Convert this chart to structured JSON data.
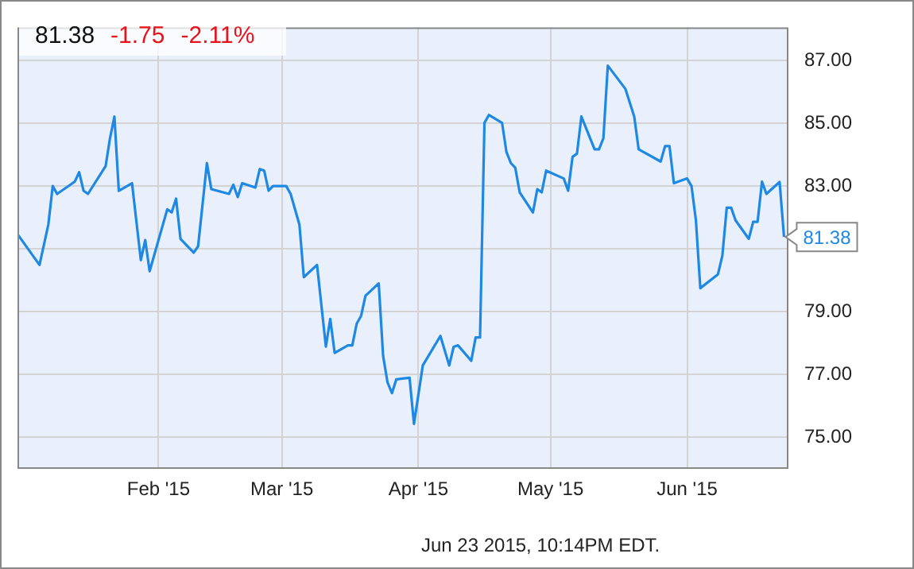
{
  "chart_data": {
    "type": "line",
    "x": [
      "2014-12-31",
      "2015-01-05",
      "2015-01-07",
      "2015-01-08",
      "2015-01-09",
      "2015-01-12",
      "2015-01-13",
      "2015-01-14",
      "2015-01-15",
      "2015-01-16",
      "2015-01-20",
      "2015-01-21",
      "2015-01-22",
      "2015-01-23",
      "2015-01-26",
      "2015-01-28",
      "2015-01-29",
      "2015-01-30",
      "2015-02-03",
      "2015-02-04",
      "2015-02-05",
      "2015-02-06",
      "2015-02-09",
      "2015-02-10",
      "2015-02-12",
      "2015-02-13",
      "2015-02-17",
      "2015-02-18",
      "2015-02-19",
      "2015-02-20",
      "2015-02-23",
      "2015-02-24",
      "2015-02-25",
      "2015-02-26",
      "2015-02-27",
      "2015-03-02",
      "2015-03-03",
      "2015-03-05",
      "2015-03-06",
      "2015-03-09",
      "2015-03-11",
      "2015-03-12",
      "2015-03-13",
      "2015-03-16",
      "2015-03-17",
      "2015-03-18",
      "2015-03-19",
      "2015-03-20",
      "2015-03-23",
      "2015-03-24",
      "2015-03-25",
      "2015-03-26",
      "2015-03-27",
      "2015-03-30",
      "2015-03-31",
      "2015-04-02",
      "2015-04-06",
      "2015-04-08",
      "2015-04-09",
      "2015-04-10",
      "2015-04-13",
      "2015-04-14",
      "2015-04-15",
      "2015-04-16",
      "2015-04-17",
      "2015-04-20",
      "2015-04-21",
      "2015-04-22",
      "2015-04-23",
      "2015-04-24",
      "2015-04-27",
      "2015-04-28",
      "2015-04-29",
      "2015-04-30",
      "2015-05-04",
      "2015-05-05",
      "2015-05-06",
      "2015-05-07",
      "2015-05-08",
      "2015-05-11",
      "2015-05-12",
      "2015-05-13",
      "2015-05-14",
      "2015-05-18",
      "2015-05-19",
      "2015-05-20",
      "2015-05-21",
      "2015-05-26",
      "2015-05-27",
      "2015-05-28",
      "2015-05-29",
      "2015-06-01",
      "2015-06-02",
      "2015-06-03",
      "2015-06-04",
      "2015-06-08",
      "2015-06-09",
      "2015-06-10",
      "2015-06-11",
      "2015-06-12",
      "2015-06-15",
      "2015-06-16",
      "2015-06-17",
      "2015-06-18",
      "2015-06-19",
      "2015-06-22",
      "2015-06-23"
    ],
    "series": [
      {
        "color": "#1e88e5",
        "values": [
          81.47,
          80.49,
          81.77,
          83.0,
          82.75,
          83.04,
          83.14,
          83.44,
          82.85,
          82.75,
          83.63,
          84.52,
          85.21,
          82.85,
          83.09,
          80.64,
          81.28,
          80.29,
          82.26,
          82.16,
          82.6,
          81.32,
          80.88,
          81.08,
          83.73,
          82.9,
          82.75,
          83.04,
          82.65,
          83.09,
          82.95,
          83.54,
          83.49,
          82.85,
          83.0,
          83.0,
          82.75,
          81.77,
          80.1,
          80.49,
          77.89,
          78.77,
          77.69,
          77.93,
          77.93,
          78.62,
          78.87,
          79.51,
          79.9,
          77.59,
          76.75,
          76.41,
          76.85,
          76.9,
          75.43,
          77.29,
          78.23,
          77.29,
          77.88,
          77.93,
          77.44,
          78.18,
          78.18,
          85.01,
          85.26,
          85.01,
          84.08,
          83.73,
          83.58,
          82.8,
          82.16,
          82.9,
          82.8,
          83.49,
          83.24,
          82.85,
          83.93,
          84.03,
          85.21,
          84.17,
          84.17,
          84.52,
          86.83,
          86.09,
          85.65,
          85.21,
          84.17,
          83.78,
          84.27,
          84.27,
          83.09,
          83.24,
          83.0,
          81.91,
          79.75,
          80.19,
          80.78,
          82.31,
          82.31,
          81.91,
          81.32,
          81.86,
          81.86,
          83.14,
          82.75,
          83.13,
          81.38
        ]
      }
    ],
    "xlim": [
      "2014-12-31",
      "2015-06-24"
    ],
    "xticks": [
      {
        "value": "2015-02-01",
        "label": "Feb '15"
      },
      {
        "value": "2015-03-01",
        "label": "Mar '15"
      },
      {
        "value": "2015-04-01",
        "label": "Apr '15"
      },
      {
        "value": "2015-05-01",
        "label": "May '15"
      },
      {
        "value": "2015-06-01",
        "label": "Jun '15"
      }
    ],
    "ylim": [
      74,
      88.05
    ],
    "yticks": [
      {
        "value": 75,
        "label": "75.00"
      },
      {
        "value": 77,
        "label": "77.00"
      },
      {
        "value": 79,
        "label": "79.00"
      },
      {
        "value": 81,
        "label": null
      },
      {
        "value": 83,
        "label": "83.00"
      },
      {
        "value": 85,
        "label": "85.00"
      },
      {
        "value": 87,
        "label": "87.00"
      }
    ],
    "grid": true,
    "legend": false,
    "marker": "none",
    "line_style": "solid",
    "annotations": [
      "81.38",
      "-1.75",
      "-2.11%",
      "Jun 23 2015, 10:14PM EDT.",
      {
        "text": "81.38",
        "x": "2015-06-23",
        "y": 81.38
      }
    ]
  }
}
